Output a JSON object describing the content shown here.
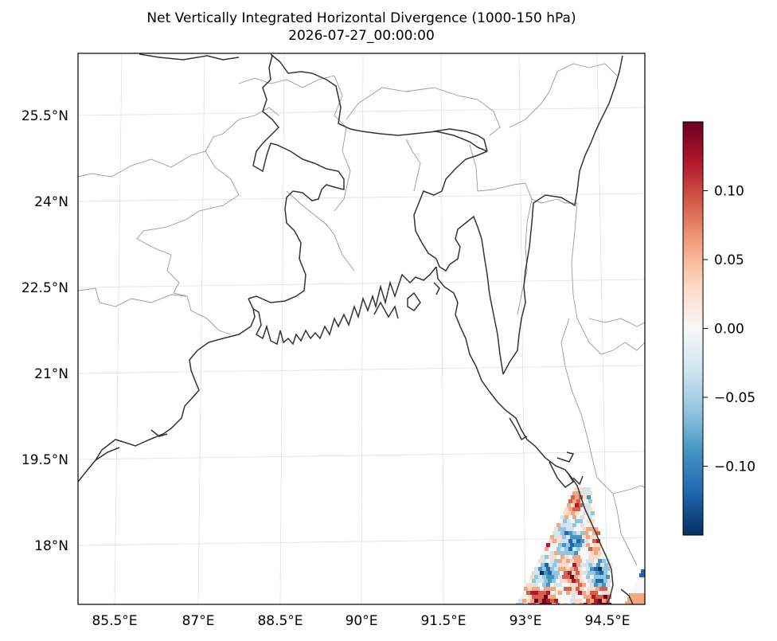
{
  "title": {
    "line1": "Net Vertically Integrated Horizontal Divergence (1000-150 hPa)",
    "line2": "2026-07-27_00:00:00"
  },
  "axes": {
    "lat_labels": [
      "25.5°N",
      "24°N",
      "22.5°N",
      "21°N",
      "19.5°N",
      "18°N"
    ],
    "lon_labels": [
      "85.5°E",
      "87°E",
      "88.5°E",
      "90°E",
      "91.5°E",
      "93°E",
      "94.5°E"
    ]
  },
  "colorbar": {
    "colormap": "RdBu_r",
    "tick_labels": [
      "0.10",
      "0.05",
      "0.00",
      "−0.05",
      "−0.10"
    ],
    "tick_values": [
      0.1,
      0.05,
      0.0,
      -0.05,
      -0.1
    ],
    "range": [
      -0.15,
      0.15
    ],
    "colors": [
      "#053061",
      "#2166ac",
      "#4393c3",
      "#92c5de",
      "#d1e5f0",
      "#f7f7f7",
      "#fddbc7",
      "#f4a582",
      "#d6604d",
      "#b2182b",
      "#67001f"
    ]
  },
  "map": {
    "projection": "lambert-conformal",
    "lon_range": [
      84.5,
      95.5
    ],
    "lat_range": [
      16.5,
      26.5
    ],
    "coastline_color": "#333333",
    "border_color": "#999999",
    "gridlines": "on"
  }
}
